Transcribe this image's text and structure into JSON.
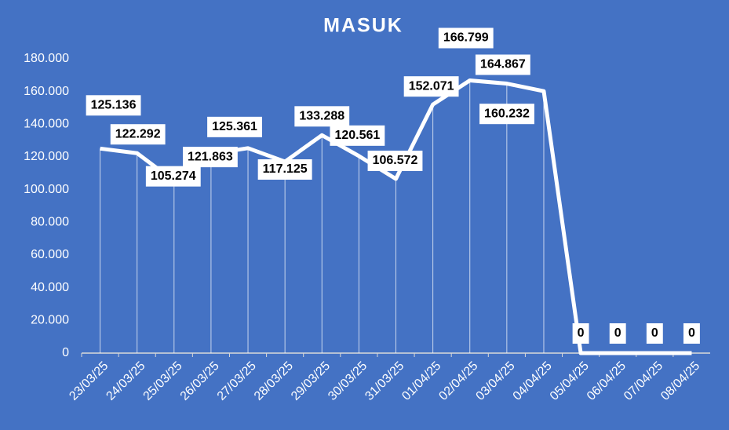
{
  "chart_data": {
    "type": "line",
    "title": "MASUK",
    "categories": [
      "23/03/25",
      "24/03/25",
      "25/03/25",
      "26/03/25",
      "27/03/25",
      "28/03/25",
      "29/03/25",
      "30/03/25",
      "31/03/25",
      "01/04/25",
      "02/04/25",
      "03/04/25",
      "04/04/25",
      "05/04/25",
      "06/04/25",
      "07/04/25",
      "08/04/25"
    ],
    "values": [
      125136,
      122292,
      105274,
      121863,
      125361,
      117125,
      133288,
      120561,
      106572,
      152071,
      166799,
      164867,
      160232,
      0,
      0,
      0,
      0
    ],
    "value_labels": [
      "125.136",
      "122.292",
      "105.274",
      "121.863",
      "125.361",
      "117.125",
      "133.288",
      "120.561",
      "106.572",
      "152.071",
      "166.799",
      "164.867",
      "160.232",
      "0",
      "0",
      "0",
      "0"
    ],
    "color": "#ffffff",
    "ylim": [
      0,
      180000
    ],
    "yticks": [
      0,
      {
        "value": 20000,
        "label": "20.000"
      },
      {
        "value": 40000,
        "label": "40.000"
      },
      {
        "value": 60000,
        "label": "60.000"
      },
      {
        "value": 80000,
        "label": "80.000"
      },
      {
        "value": 100000,
        "label": "100.000"
      },
      {
        "value": 120000,
        "label": "120.000"
      },
      {
        "value": 140000,
        "label": "140.000"
      },
      {
        "value": 160000,
        "label": "160.000"
      },
      {
        "value": 180000,
        "label": "180.000"
      }
    ]
  }
}
